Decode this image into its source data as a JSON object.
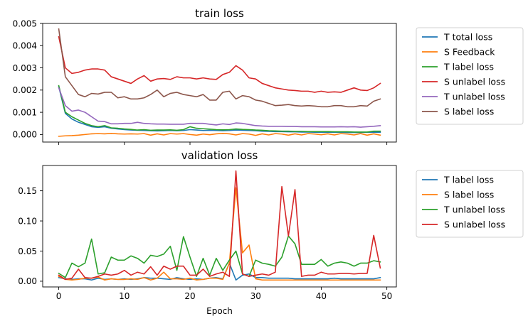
{
  "chart_data": [
    {
      "type": "line",
      "title": "train loss",
      "xlabel": "",
      "ylabel": "",
      "xlim": [
        -2.45,
        51.45
      ],
      "ylim": [
        -0.00034,
        0.005
      ],
      "xticks": [
        0,
        10,
        20,
        30,
        40,
        50
      ],
      "show_xtick_labels": false,
      "yticks": [
        0.0,
        0.001,
        0.002,
        0.003,
        0.004,
        0.005
      ],
      "ytick_labels": [
        "0.000",
        "0.001",
        "0.002",
        "0.003",
        "0.004",
        "0.005"
      ],
      "grid": false,
      "legend_position": "outside-right",
      "x": [
        0,
        1,
        2,
        3,
        4,
        5,
        6,
        7,
        8,
        9,
        10,
        11,
        12,
        13,
        14,
        15,
        16,
        17,
        18,
        19,
        20,
        21,
        22,
        23,
        24,
        25,
        26,
        27,
        28,
        29,
        30,
        31,
        32,
        33,
        34,
        35,
        36,
        37,
        38,
        39,
        40,
        41,
        42,
        43,
        44,
        45,
        46,
        47,
        48,
        49
      ],
      "series": [
        {
          "name": "T total loss",
          "color": "#1f77b4",
          "values": [
            0.00215,
            0.00095,
            0.0007,
            0.00055,
            0.00045,
            0.00035,
            0.00032,
            0.00035,
            0.00028,
            0.00025,
            0.00022,
            0.0002,
            0.00019,
            0.00018,
            0.00017,
            0.00016,
            0.00017,
            0.00018,
            0.00017,
            0.00018,
            0.00022,
            0.0002,
            0.00018,
            0.00019,
            0.00018,
            0.00017,
            0.00018,
            0.0002,
            0.00019,
            0.00018,
            0.00017,
            0.00015,
            0.00014,
            0.00013,
            0.00013,
            0.00012,
            0.00012,
            0.00011,
            0.00011,
            0.0001,
            0.0001,
            0.0001,
            0.0001,
            0.0001,
            9e-05,
            9e-05,
            9e-05,
            0.0001,
            0.0001,
            0.0001
          ]
        },
        {
          "name": "S Feedback",
          "color": "#ff7f0e",
          "values": [
            -8e-05,
            -6e-05,
            -5e-05,
            -3e-05,
            0.0,
            3e-05,
            4e-05,
            3e-05,
            5e-05,
            3e-05,
            2e-05,
            3e-05,
            2e-05,
            4e-05,
            -3e-05,
            3e-05,
            -2e-05,
            4e-05,
            2e-05,
            4e-05,
            0.0,
            -3e-05,
            2e-05,
            -1e-05,
            3e-05,
            5e-05,
            3e-05,
            -2e-05,
            4e-05,
            2e-05,
            -4e-05,
            3e-05,
            -2e-05,
            4e-05,
            2e-05,
            -3e-05,
            3e-05,
            -2e-05,
            4e-05,
            2e-05,
            -1e-05,
            3e-05,
            -2e-05,
            4e-05,
            2e-05,
            -2e-05,
            4e-05,
            -3e-05,
            3e-05,
            -3e-05
          ]
        },
        {
          "name": "T label loss",
          "color": "#2ca02c",
          "values": [
            0.0022,
            0.001,
            0.0008,
            0.00065,
            0.0005,
            0.0004,
            0.00035,
            0.0004,
            0.0003,
            0.00028,
            0.00025,
            0.00023,
            0.0002,
            0.00022,
            0.00019,
            0.0002,
            0.0002,
            0.00021,
            0.00019,
            0.00022,
            0.00035,
            0.00028,
            0.00026,
            0.00024,
            0.00022,
            0.00021,
            0.00022,
            0.00025,
            0.00023,
            0.00022,
            0.0002,
            0.00019,
            0.00017,
            0.00016,
            0.00015,
            0.00015,
            0.00014,
            0.00014,
            0.00013,
            0.00013,
            0.00013,
            0.00013,
            0.00012,
            0.00012,
            0.00012,
            0.00011,
            0.00011,
            0.00011,
            0.00015,
            0.00015
          ]
        },
        {
          "name": "S unlabel loss",
          "color": "#d62728",
          "values": [
            0.0044,
            0.003,
            0.00275,
            0.0028,
            0.0029,
            0.00295,
            0.00295,
            0.0029,
            0.0026,
            0.0025,
            0.0024,
            0.0023,
            0.0025,
            0.00265,
            0.0024,
            0.0025,
            0.00252,
            0.00248,
            0.0026,
            0.00255,
            0.00255,
            0.0025,
            0.00255,
            0.0025,
            0.00248,
            0.0027,
            0.0028,
            0.0031,
            0.0029,
            0.00255,
            0.0025,
            0.0023,
            0.0022,
            0.0021,
            0.00205,
            0.002,
            0.00198,
            0.00195,
            0.00195,
            0.0019,
            0.00195,
            0.0019,
            0.00192,
            0.0019,
            0.002,
            0.0021,
            0.002,
            0.00198,
            0.0021,
            0.0023
          ]
        },
        {
          "name": "T unlabel loss",
          "color": "#9467bd",
          "values": [
            0.0021,
            0.0013,
            0.00105,
            0.0011,
            0.001,
            0.0008,
            0.0006,
            0.00058,
            0.00048,
            0.00048,
            0.0005,
            0.0005,
            0.00055,
            0.0005,
            0.00048,
            0.00047,
            0.00047,
            0.00046,
            0.00046,
            0.00046,
            0.0005,
            0.0005,
            0.0005,
            0.00046,
            0.00043,
            0.00048,
            0.00045,
            0.00052,
            0.0005,
            0.00045,
            0.0004,
            0.00038,
            0.00037,
            0.00037,
            0.00037,
            0.00036,
            0.00036,
            0.00035,
            0.00035,
            0.00035,
            0.00034,
            0.00034,
            0.00034,
            0.00035,
            0.00034,
            0.00035,
            0.00033,
            0.00035,
            0.00037,
            0.0004
          ]
        },
        {
          "name": "S label loss",
          "color": "#8c564b",
          "values": [
            0.00475,
            0.0026,
            0.0022,
            0.0018,
            0.0017,
            0.00185,
            0.00182,
            0.0019,
            0.0019,
            0.00165,
            0.0017,
            0.0016,
            0.0016,
            0.00165,
            0.0018,
            0.002,
            0.0017,
            0.00185,
            0.0019,
            0.0018,
            0.00175,
            0.0017,
            0.0018,
            0.00155,
            0.00155,
            0.0019,
            0.00195,
            0.0016,
            0.00175,
            0.0017,
            0.00155,
            0.0015,
            0.0014,
            0.0013,
            0.00132,
            0.00135,
            0.0013,
            0.00128,
            0.0013,
            0.00128,
            0.00125,
            0.00125,
            0.0013,
            0.0013,
            0.00125,
            0.00125,
            0.0013,
            0.00128,
            0.0015,
            0.0016
          ]
        }
      ]
    },
    {
      "type": "line",
      "title": "validation loss",
      "xlabel": "Epoch",
      "ylabel": "",
      "xlim": [
        -2.45,
        51.45
      ],
      "ylim": [
        -0.0095,
        0.192
      ],
      "xticks": [
        0,
        10,
        20,
        30,
        40,
        50
      ],
      "xtick_labels": [
        "0",
        "10",
        "20",
        "30",
        "40",
        "50"
      ],
      "yticks": [
        0.0,
        0.05,
        0.1,
        0.15
      ],
      "ytick_labels": [
        "0.00",
        "0.05",
        "0.10",
        "0.15"
      ],
      "grid": false,
      "legend_position": "outside-right",
      "x": [
        0,
        1,
        2,
        3,
        4,
        5,
        6,
        7,
        8,
        9,
        10,
        11,
        12,
        13,
        14,
        15,
        16,
        17,
        18,
        19,
        20,
        21,
        22,
        23,
        24,
        25,
        26,
        27,
        28,
        29,
        30,
        31,
        32,
        33,
        34,
        35,
        36,
        37,
        38,
        39,
        40,
        41,
        42,
        43,
        44,
        45,
        46,
        47,
        48,
        49
      ],
      "series": [
        {
          "name": "T label loss",
          "color": "#1f77b4",
          "values": [
            0.006,
            0.004,
            0.003,
            0.004,
            0.004,
            0.002,
            0.005,
            0.003,
            0.004,
            0.003,
            0.004,
            0.003,
            0.004,
            0.006,
            0.005,
            0.005,
            0.004,
            0.003,
            0.006,
            0.004,
            0.003,
            0.004,
            0.003,
            0.005,
            0.006,
            0.004,
            0.03,
            0.002,
            0.01,
            0.012,
            0.006,
            0.006,
            0.005,
            0.005,
            0.005,
            0.005,
            0.004,
            0.004,
            0.004,
            0.004,
            0.004,
            0.004,
            0.005,
            0.004,
            0.004,
            0.004,
            0.004,
            0.004,
            0.004,
            0.006
          ]
        },
        {
          "name": "S label loss",
          "color": "#ff7f0e",
          "values": [
            0.008,
            0.003,
            0.002,
            0.003,
            0.005,
            0.005,
            0.007,
            0.002,
            0.004,
            0.003,
            0.003,
            0.004,
            0.003,
            0.006,
            0.002,
            0.005,
            0.015,
            0.004,
            0.004,
            0.003,
            0.005,
            0.002,
            0.003,
            0.005,
            0.005,
            0.003,
            0.03,
            0.155,
            0.047,
            0.06,
            0.004,
            0.002,
            0.002,
            0.002,
            0.002,
            0.002,
            0.002,
            0.002,
            0.002,
            0.002,
            0.002,
            0.002,
            0.002,
            0.002,
            0.002,
            0.002,
            0.002,
            0.002,
            0.002,
            0.002
          ]
        },
        {
          "name": "T unlabel loss",
          "color": "#2ca02c",
          "values": [
            0.013,
            0.006,
            0.03,
            0.024,
            0.03,
            0.07,
            0.012,
            0.014,
            0.04,
            0.035,
            0.035,
            0.042,
            0.038,
            0.03,
            0.043,
            0.041,
            0.045,
            0.058,
            0.018,
            0.074,
            0.04,
            0.008,
            0.038,
            0.01,
            0.038,
            0.018,
            0.035,
            0.05,
            0.012,
            0.008,
            0.035,
            0.03,
            0.028,
            0.025,
            0.04,
            0.075,
            0.062,
            0.028,
            0.028,
            0.028,
            0.036,
            0.025,
            0.03,
            0.032,
            0.03,
            0.025,
            0.03,
            0.03,
            0.034,
            0.032
          ]
        },
        {
          "name": "S unlabel loss",
          "color": "#d62728",
          "values": [
            0.01,
            0.003,
            0.005,
            0.02,
            0.006,
            0.005,
            0.008,
            0.012,
            0.01,
            0.012,
            0.018,
            0.01,
            0.015,
            0.012,
            0.024,
            0.01,
            0.025,
            0.02,
            0.025,
            0.025,
            0.01,
            0.01,
            0.02,
            0.008,
            0.012,
            0.015,
            0.008,
            0.183,
            0.012,
            0.008,
            0.01,
            0.012,
            0.01,
            0.015,
            0.157,
            0.075,
            0.152,
            0.008,
            0.01,
            0.01,
            0.015,
            0.012,
            0.012,
            0.013,
            0.013,
            0.012,
            0.013,
            0.013,
            0.076,
            0.022
          ]
        }
      ]
    }
  ]
}
